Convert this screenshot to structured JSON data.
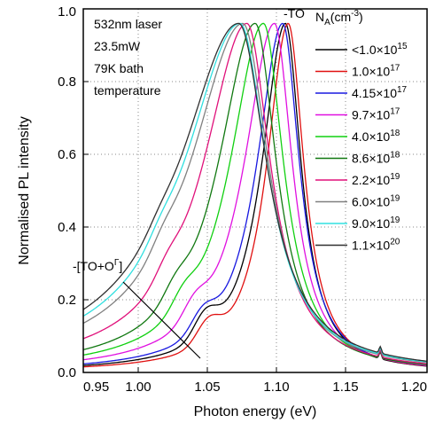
{
  "chart_data": {
    "type": "line",
    "xlabel": "Photon energy (eV)",
    "ylabel": "Normalised PL intensity",
    "xlim": [
      0.95,
      1.2
    ],
    "ylim": [
      0.0,
      1.0
    ],
    "xticks": [
      "0.95",
      "1.00",
      "1.05",
      "1.10",
      "1.15",
      "1.20"
    ],
    "yticks": [
      "0.0",
      "0.2",
      "0.4",
      "0.6",
      "0.8",
      "1.0"
    ],
    "grid": "dotted",
    "annotations": {
      "conditions": [
        "532nm laser",
        "23.5mW",
        "79K bath",
        "temperature"
      ],
      "to_peak": "-TO",
      "to_plus_o": "-[TO+O",
      "to_plus_o_sup": "Γ",
      "to_plus_o_close": "]"
    },
    "legend": {
      "title_main": "N",
      "title_sub": "A",
      "title_unit": "(cm",
      "title_sup": "-3",
      "title_close": ")",
      "placement": "right"
    },
    "series": [
      {
        "label_base": "<1.0×10",
        "label_exp": "15",
        "color": "#000000",
        "peak": 1.097,
        "wl": 0.021,
        "wr": 0.014
      },
      {
        "label_base": "1.0×10",
        "label_exp": "17",
        "color": "#e01010",
        "peak": 1.099,
        "wl": 0.019,
        "wr": 0.014
      },
      {
        "label_base": "4.15×10",
        "label_exp": "17",
        "color": "#1818e0",
        "peak": 1.095,
        "wl": 0.023,
        "wr": 0.015
      },
      {
        "label_base": "9.7×10",
        "label_exp": "17",
        "color": "#e010e0",
        "peak": 1.089,
        "wl": 0.027,
        "wr": 0.016
      },
      {
        "label_base": "4.0×10",
        "label_exp": "18",
        "color": "#10d010",
        "peak": 1.081,
        "wl": 0.03,
        "wr": 0.018
      },
      {
        "label_base": "8.6×10",
        "label_exp": "18",
        "color": "#107810",
        "peak": 1.075,
        "wl": 0.033,
        "wr": 0.019
      },
      {
        "label_base": "2.2×10",
        "label_exp": "19",
        "color": "#e0107a",
        "peak": 1.069,
        "wl": 0.039,
        "wr": 0.021
      },
      {
        "label_base": "6.0×10",
        "label_exp": "19",
        "color": "#808080",
        "peak": 1.066,
        "wl": 0.047,
        "wr": 0.023
      },
      {
        "label_base": "9.0×10",
        "label_exp": "19",
        "color": "#30e0e0",
        "peak": 1.064,
        "wl": 0.05,
        "wr": 0.024
      },
      {
        "label_base": "1.1×10",
        "label_exp": "20",
        "color": "#303030",
        "peak": 1.063,
        "wl": 0.053,
        "wr": 0.025
      }
    ]
  }
}
